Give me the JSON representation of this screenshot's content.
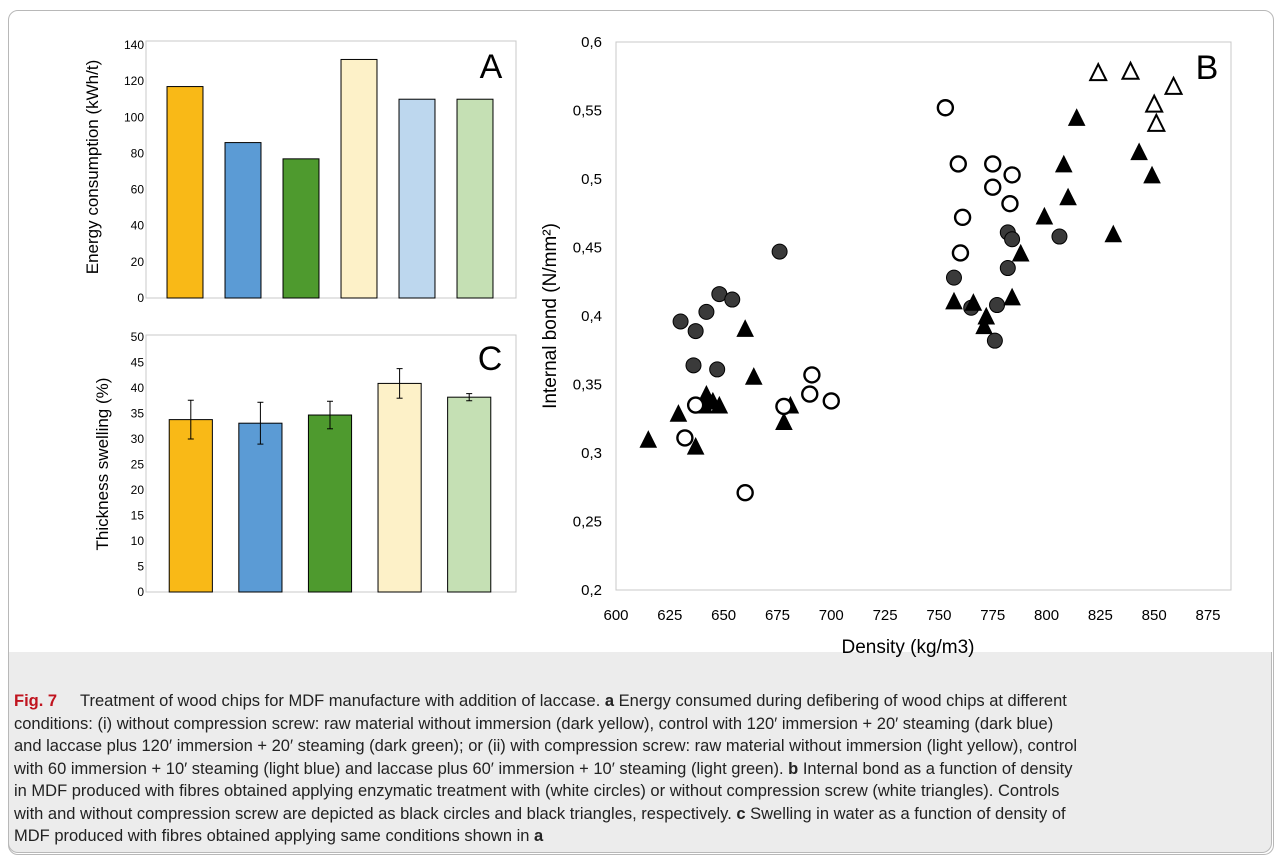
{
  "chart_data": [
    {
      "panel": "A",
      "type": "bar",
      "ylabel": "Energy consumption (kWh/t)",
      "ylim": [
        0,
        140
      ],
      "yticks": [
        "0",
        "20",
        "40",
        "60",
        "80",
        "100",
        "120",
        "140"
      ],
      "values": [
        117,
        86,
        77,
        132,
        110,
        110
      ],
      "colors": [
        "#f9b917",
        "#5b9bd5",
        "#4e9a2e",
        "#fdf1c8",
        "#bdd7ee",
        "#c5e0b4"
      ]
    },
    {
      "panel": "C",
      "type": "bar",
      "ylabel": "Thickness swelling (%)",
      "ylim": [
        0,
        50
      ],
      "yticks": [
        "0",
        "5",
        "10",
        "15",
        "20",
        "25",
        "30",
        "35",
        "40",
        "45",
        "50"
      ],
      "values": [
        33.8,
        33.1,
        34.7,
        40.9,
        38.2
      ],
      "errors": [
        3.8,
        4.1,
        2.7,
        2.9,
        0.7
      ],
      "colors": [
        "#f9b917",
        "#5b9bd5",
        "#4e9a2e",
        "#fdf1c8",
        "#c5e0b4"
      ]
    },
    {
      "panel": "B",
      "type": "scatter",
      "xlabel": "Density (kg/m3)",
      "ylabel": "Internal bond (N/mm²)",
      "xlim": [
        600,
        875
      ],
      "ylim": [
        0.2,
        0.6
      ],
      "xticks": [
        "600",
        "625",
        "650",
        "675",
        "700",
        "725",
        "750",
        "775",
        "800",
        "825",
        "850",
        "875"
      ],
      "yticks": [
        "0,2",
        "0,25",
        "0,3",
        "0,35",
        "0,4",
        "0,45",
        "0,5",
        "0,55",
        "0,6"
      ],
      "series": [
        {
          "marker": "filled-circle",
          "color": "#3a3a3a",
          "points": [
            [
              630,
              0.396
            ],
            [
              636,
              0.364
            ],
            [
              637,
              0.389
            ],
            [
              642,
              0.403
            ],
            [
              647,
              0.361
            ],
            [
              648,
              0.416
            ],
            [
              654,
              0.412
            ],
            [
              676,
              0.447
            ],
            [
              757,
              0.428
            ],
            [
              765,
              0.406
            ],
            [
              776,
              0.382
            ],
            [
              777,
              0.408
            ],
            [
              782,
              0.435
            ],
            [
              782,
              0.461
            ],
            [
              784,
              0.456
            ],
            [
              806,
              0.458
            ]
          ]
        },
        {
          "marker": "filled-triangle",
          "color": "#000000",
          "points": [
            [
              615,
              0.31
            ],
            [
              629,
              0.329
            ],
            [
              637,
              0.305
            ],
            [
              641,
              0.335
            ],
            [
              642,
              0.343
            ],
            [
              645,
              0.338
            ],
            [
              648,
              0.335
            ],
            [
              660,
              0.391
            ],
            [
              664,
              0.356
            ],
            [
              678,
              0.323
            ],
            [
              681,
              0.335
            ],
            [
              757,
              0.411
            ],
            [
              766,
              0.41
            ],
            [
              771,
              0.393
            ],
            [
              772,
              0.4
            ],
            [
              784,
              0.414
            ],
            [
              788,
              0.446
            ],
            [
              799,
              0.473
            ],
            [
              808,
              0.511
            ],
            [
              810,
              0.487
            ],
            [
              814,
              0.545
            ],
            [
              831,
              0.46
            ],
            [
              843,
              0.52
            ],
            [
              849,
              0.503
            ]
          ]
        },
        {
          "marker": "open-circle",
          "color": "#000000",
          "points": [
            [
              632,
              0.311
            ],
            [
              637,
              0.335
            ],
            [
              660,
              0.271
            ],
            [
              678,
              0.334
            ],
            [
              690,
              0.343
            ],
            [
              691,
              0.357
            ],
            [
              700,
              0.338
            ],
            [
              753,
              0.552
            ],
            [
              759,
              0.511
            ],
            [
              760,
              0.446
            ],
            [
              761,
              0.472
            ],
            [
              775,
              0.511
            ],
            [
              775,
              0.494
            ],
            [
              783,
              0.482
            ],
            [
              784,
              0.503
            ]
          ]
        },
        {
          "marker": "open-triangle",
          "color": "#000000",
          "points": [
            [
              824,
              0.578
            ],
            [
              839,
              0.579
            ],
            [
              850,
              0.555
            ],
            [
              851,
              0.541
            ],
            [
              859,
              0.568
            ]
          ]
        }
      ]
    }
  ],
  "caption": {
    "fig_label": "Fig. 7",
    "lines": [
      [
        [
          "n",
          "Treatment of wood chips for MDF manufacture with addition of laccase. "
        ],
        [
          "b",
          "a"
        ],
        [
          "n",
          " Energy consumed during defibering of wood chips at different"
        ]
      ],
      [
        [
          "n",
          "conditions: (i) without compression screw: raw material without immersion (dark yellow), control with 120′ immersion + 20′ steaming (dark blue)"
        ]
      ],
      [
        [
          "n",
          "and laccase plus 120′ immersion + 20′ steaming (dark green); or (ii) with compression screw: raw material without immersion (light yellow), control"
        ]
      ],
      [
        [
          "n",
          "with 60 immersion + 10′ steaming (light blue) and laccase plus 60′ immersion + 10′ steaming (light green). "
        ],
        [
          "b",
          "b"
        ],
        [
          "n",
          " Internal bond as a function of density"
        ]
      ],
      [
        [
          "n",
          "in MDF produced with fibres obtained applying enzymatic treatment with (white circles) or without compression screw (white triangles). Controls"
        ]
      ],
      [
        [
          "n",
          "with and without compression screw are depicted as black circles and black triangles, respectively. "
        ],
        [
          "b",
          "c"
        ],
        [
          "n",
          " Swelling in water as a function of density of"
        ]
      ],
      [
        [
          "n",
          "MDF produced with fibres obtained applying same conditions shown in "
        ],
        [
          "b",
          "a"
        ]
      ]
    ]
  }
}
